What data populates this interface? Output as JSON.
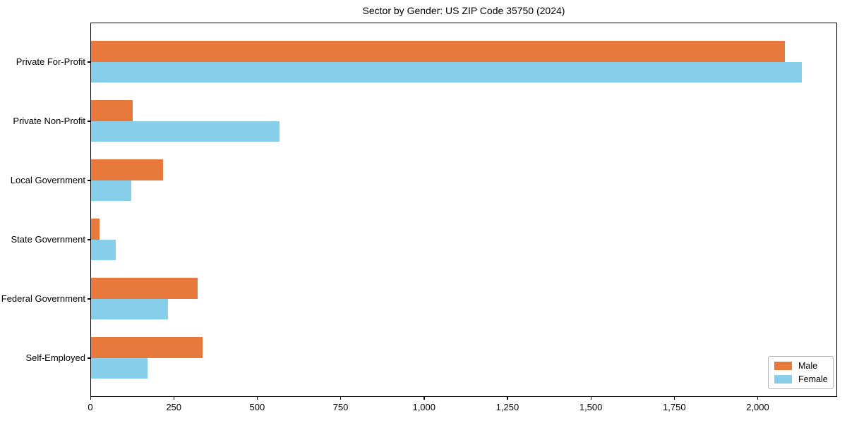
{
  "title": "Sector by Gender: US ZIP Code 35750 (2024)",
  "chart_data": {
    "type": "bar",
    "orientation": "horizontal",
    "title": "Sector by Gender: US ZIP Code 35750 (2024)",
    "categories": [
      "Private For-Profit",
      "Private Non-Profit",
      "Local Government",
      "State Government",
      "Federal Government",
      "Self-Employed"
    ],
    "series": [
      {
        "name": "Male",
        "color": "#e8793d",
        "values": [
          2080,
          125,
          215,
          25,
          320,
          335
        ]
      },
      {
        "name": "Female",
        "color": "#87ceeb",
        "values": [
          2130,
          565,
          120,
          75,
          230,
          170
        ]
      }
    ],
    "xlabel": "",
    "ylabel": "",
    "xlim": [
      0,
      2238
    ],
    "xticks": [
      0,
      250,
      500,
      750,
      1000,
      1250,
      1500,
      1750,
      2000
    ],
    "xtick_labels": [
      "0",
      "250",
      "500",
      "750",
      "1,000",
      "1,250",
      "1,500",
      "1,750",
      "2,000"
    ],
    "legend_position": "lower right",
    "grid": false,
    "background": "#ffffff",
    "spine_color": "#000000"
  }
}
